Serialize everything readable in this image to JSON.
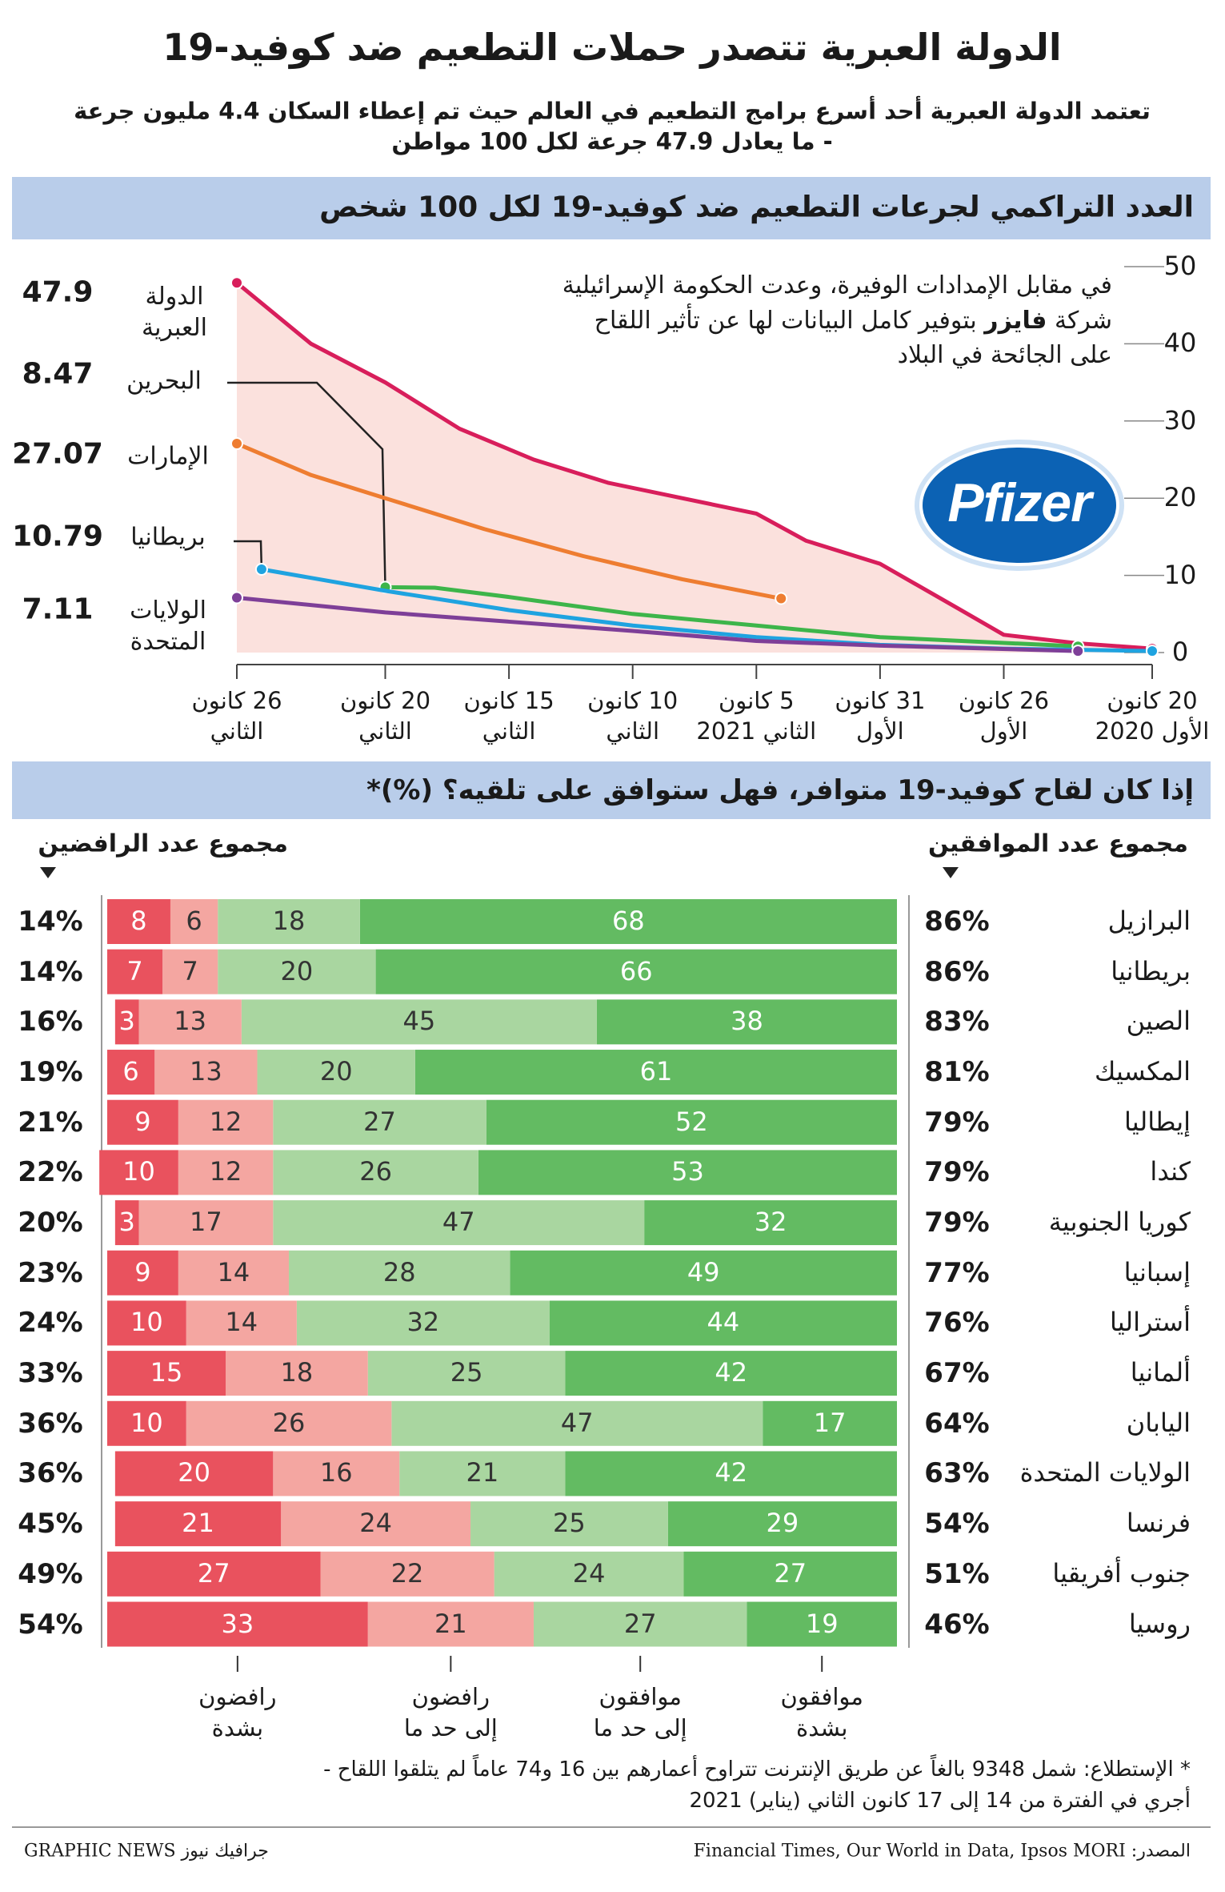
{
  "header": {
    "title": "الدولة العبرية تتصدر حملات التطعيم ضد كوفيد-19",
    "subtitle": "تعتمد الدولة العبرية أحد أسرع برامج التطعيم في العالم حيث تم إعطاء السكان 4.4 مليون جرعة\n- ما يعادل 47.9 جرعة لكل 100 مواطن"
  },
  "chart_data": [
    {
      "type": "line",
      "title": "العدد التراكمي لجرعات التطعيم ضد كوفيد-19 لكل 100 شخص",
      "xlim": [
        "2020-12-20",
        "2021-01-26"
      ],
      "xticks": [
        {
          "value": "2020-12-20",
          "label": "20 كانون\nالأول 2020"
        },
        {
          "value": "2020-12-26",
          "label": "26 كانون\nالأول"
        },
        {
          "value": "2020-12-31",
          "label": "31 كانون\nالأول"
        },
        {
          "value": "2021-01-05",
          "label": "5 كانون\nالثاني 2021"
        },
        {
          "value": "2021-01-10",
          "label": "10 كانون\nالثاني"
        },
        {
          "value": "2021-01-15",
          "label": "15 كانون\nالثاني"
        },
        {
          "value": "2021-01-20",
          "label": "20 كانون\nالثاني"
        },
        {
          "value": "2021-01-26",
          "label": "26 كانون\nالثاني"
        }
      ],
      "ylim": [
        0,
        50
      ],
      "yticks": [
        0,
        10,
        20,
        30,
        40,
        50
      ],
      "annotation": [
        "في مقابل الإمدادات الوفيرة، وعدت الحكومة الإسرائيلية شركة ",
        "فايزر",
        " بتوفير كامل البيانات لها عن تأثير اللقاح على الجائحة في البلاد"
      ],
      "logo": "Pfizer",
      "area_color": "#fbe1dd",
      "series": [
        {
          "name": "الدولة\nالعبرية",
          "color": "#d81e5b",
          "x": [
            "2020-12-20",
            "2020-12-23",
            "2020-12-26",
            "2020-12-28",
            "2020-12-31",
            "2021-01-03",
            "2021-01-05",
            "2021-01-08",
            "2021-01-11",
            "2021-01-14",
            "2021-01-17",
            "2021-01-20",
            "2021-01-23",
            "2021-01-26"
          ],
          "values": [
            0.5,
            1.2,
            2.3,
            6,
            11.5,
            14.5,
            18,
            20,
            22,
            25,
            29,
            35,
            40,
            47.9
          ]
        },
        {
          "name": "البحرين",
          "color": "#3db54a",
          "x": [
            "2020-12-23",
            "2020-12-31",
            "2021-01-05",
            "2021-01-10",
            "2021-01-15",
            "2021-01-18",
            "2021-01-20"
          ],
          "values": [
            0.8,
            2,
            3.5,
            5,
            7.2,
            8.4,
            8.47
          ]
        },
        {
          "name": "الإمارات",
          "color": "#ee7d31",
          "x": [
            "2021-01-04",
            "2021-01-08",
            "2021-01-12",
            "2021-01-16",
            "2021-01-20",
            "2021-01-23",
            "2021-01-26"
          ],
          "values": [
            7,
            9.5,
            12.5,
            16,
            20,
            23,
            27.07
          ]
        },
        {
          "name": "بريطانيا",
          "color": "#1fa3e0",
          "x": [
            "2020-12-20",
            "2020-12-26",
            "2020-12-31",
            "2021-01-05",
            "2021-01-10",
            "2021-01-15",
            "2021-01-20",
            "2021-01-25"
          ],
          "values": [
            0.2,
            0.5,
            1,
            2,
            3.5,
            5.5,
            8,
            10.79
          ]
        },
        {
          "name": "الولايات\nالمتحدة",
          "color": "#7e3f98",
          "x": [
            "2020-12-23",
            "2020-12-31",
            "2021-01-05",
            "2021-01-10",
            "2021-01-15",
            "2021-01-20",
            "2021-01-26"
          ],
          "values": [
            0.2,
            0.9,
            1.5,
            2.8,
            4,
            5.2,
            7.11
          ]
        }
      ]
    },
    {
      "type": "stacked-bar",
      "title": "إذا كان لقاح كوفيد-19 متوافر، فهل ستوافق على تلقيه؟ (%)*",
      "agree_header": "مجموع عدد الموافقين",
      "refuse_header": "مجموع عدد الرافضين",
      "categories": [
        "البرازيل",
        "بريطانيا",
        "الصين",
        "المكسيك",
        "إيطاليا",
        "كندا",
        "كوريا الجنوبية",
        "إسبانيا",
        "أستراليا",
        "ألمانيا",
        "اليابان",
        "الولايات المتحدة",
        "فرنسا",
        "جنوب أفريقيا",
        "روسيا"
      ],
      "series": [
        {
          "name": "موافقون\nبشدة",
          "color": "#63bb62",
          "text_color": "#ffffff",
          "values": [
            68,
            66,
            38,
            61,
            52,
            53,
            32,
            49,
            44,
            42,
            17,
            42,
            29,
            27,
            19
          ]
        },
        {
          "name": "موافقون\nإلى حد ما",
          "color": "#a9d6a0",
          "text_color": "#333333",
          "values": [
            18,
            20,
            45,
            20,
            27,
            26,
            47,
            28,
            32,
            25,
            47,
            21,
            25,
            24,
            27
          ]
        },
        {
          "name": "رافضون\nإلى حد ما",
          "color": "#f4a6a1",
          "text_color": "#333333",
          "values": [
            6,
            7,
            13,
            13,
            12,
            12,
            17,
            14,
            14,
            18,
            26,
            16,
            24,
            22,
            21
          ]
        },
        {
          "name": "رافضون\nبشدة",
          "color": "#e9525e",
          "text_color": "#ffffff",
          "values": [
            8,
            7,
            3,
            6,
            9,
            10,
            3,
            9,
            10,
            15,
            10,
            20,
            21,
            27,
            33
          ]
        }
      ],
      "agree_totals": {
        "values": [
          86,
          86,
          83,
          81,
          79,
          79,
          79,
          77,
          76,
          67,
          64,
          63,
          54,
          51,
          46
        ],
        "value_labels": [
          "86%",
          "86%",
          "83%",
          "81%",
          "79%",
          "79%",
          "79%",
          "77%",
          "76%",
          "67%",
          "64%",
          "63%",
          "54%",
          "51%",
          "46%"
        ]
      },
      "refuse_totals": {
        "values": [
          14,
          14,
          16,
          19,
          21,
          22,
          20,
          23,
          24,
          33,
          36,
          36,
          45,
          49,
          54
        ],
        "value_labels": [
          "14%",
          "14%",
          "16%",
          "19%",
          "21%",
          "22%",
          "20%",
          "23%",
          "24%",
          "33%",
          "36%",
          "36%",
          "45%",
          "49%",
          "54%"
        ]
      },
      "footnote": "* الإستطلاع: شمل 9348 بالغاً عن طريق الإنترنت تتراوح أعمارهم بين 16 و74 عاماً لم يتلقوا اللقاح -\nأجري في الفترة من 14 إلى 17 كانون الثاني (يناير) 2021"
    }
  ],
  "footer": {
    "source": "المصدر: Financial Times, Our World in Data, Ipsos MORI",
    "credit": "GRAPHIC NEWS جرافيك نيوز"
  }
}
